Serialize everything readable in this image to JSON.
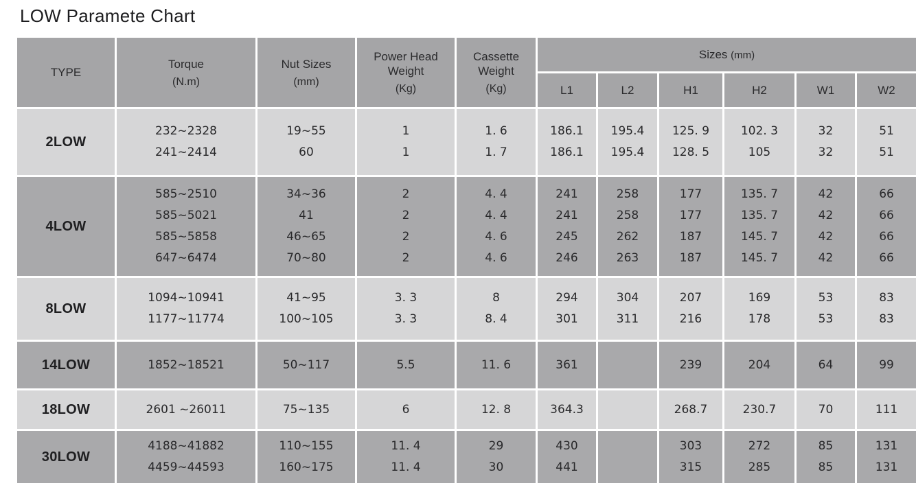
{
  "page": {
    "title": "LOW Paramete Chart"
  },
  "colors": {
    "header_bg": "#a5a5a7",
    "row_light_bg": "#d6d6d7",
    "row_dark_bg": "#a9a9ab",
    "grid": "#ffffff",
    "text": "#29292b"
  },
  "chart_data": {
    "type": "table",
    "title": "LOW Paramete Chart",
    "header": {
      "main_columns": [
        {
          "id": "type",
          "label": "TYPE",
          "sub": ""
        },
        {
          "id": "torque",
          "label": "Torque",
          "sub": "(N.m)"
        },
        {
          "id": "nut-sizes",
          "label": "Nut Sizes",
          "sub": "(mm)"
        },
        {
          "id": "power-head-weight",
          "label": "Power Head Weight",
          "sub": "(Kg)"
        },
        {
          "id": "cassette-weight",
          "label": "Cassette Weight",
          "sub": "(Kg)"
        }
      ],
      "sizes_group": {
        "label": "Sizes",
        "unit": "(mm)"
      },
      "size_columns": [
        "L1",
        "L2",
        "H1",
        "H2",
        "W1",
        "W2"
      ]
    },
    "rows": [
      {
        "type": "2LOW",
        "cells": {
          "torque": [
            "232~2328",
            "241~2414"
          ],
          "nut_sizes": [
            "19~55",
            "60"
          ],
          "power_head_weight": [
            "1",
            "1"
          ],
          "cassette_weight": [
            "1. 6",
            "1. 7"
          ],
          "L1": [
            "186.1",
            "186.1"
          ],
          "L2": [
            "195.4",
            "195.4"
          ],
          "H1": [
            "125. 9",
            "128. 5"
          ],
          "H2": [
            "102. 3",
            "105"
          ],
          "W1": [
            "32",
            "32"
          ],
          "W2": [
            "51",
            "51"
          ]
        }
      },
      {
        "type": "4LOW",
        "cells": {
          "torque": [
            "585~2510",
            "585~5021",
            "585~5858",
            "647~6474"
          ],
          "nut_sizes": [
            "34~36",
            "41",
            "46~65",
            "70~80"
          ],
          "power_head_weight": [
            "2",
            "2",
            "2",
            "2"
          ],
          "cassette_weight": [
            "4. 4",
            "4. 4",
            "4. 6",
            "4. 6"
          ],
          "L1": [
            "241",
            "241",
            "245",
            "246"
          ],
          "L2": [
            "258",
            "258",
            "262",
            "263"
          ],
          "H1": [
            "177",
            "177",
            "187",
            "187"
          ],
          "H2": [
            "135. 7",
            "135. 7",
            "145. 7",
            "145. 7"
          ],
          "W1": [
            "42",
            "42",
            "42",
            "42"
          ],
          "W2": [
            "66",
            "66",
            "66",
            "66"
          ]
        }
      },
      {
        "type": "8LOW",
        "cells": {
          "torque": [
            "1094~10941",
            "1177~11774"
          ],
          "nut_sizes": [
            "41~95",
            "100~105"
          ],
          "power_head_weight": [
            "3. 3",
            "3. 3"
          ],
          "cassette_weight": [
            "8",
            "8. 4"
          ],
          "L1": [
            "294",
            "301"
          ],
          "L2": [
            "304",
            "311"
          ],
          "H1": [
            "207",
            "216"
          ],
          "H2": [
            "169",
            "178"
          ],
          "W1": [
            "53",
            "53"
          ],
          "W2": [
            "83",
            "83"
          ]
        }
      },
      {
        "type": "14LOW",
        "cells": {
          "torque": [
            "1852~18521"
          ],
          "nut_sizes": [
            "50~117"
          ],
          "power_head_weight": [
            "5.5"
          ],
          "cassette_weight": [
            "11. 6"
          ],
          "L1": [
            "361"
          ],
          "L2": [],
          "H1": [
            "239"
          ],
          "H2": [
            "204"
          ],
          "W1": [
            "64"
          ],
          "W2": [
            "99"
          ]
        }
      },
      {
        "type": "18LOW",
        "cells": {
          "torque": [
            "2601 ~26011"
          ],
          "nut_sizes": [
            "75~135"
          ],
          "power_head_weight": [
            "6"
          ],
          "cassette_weight": [
            "12. 8"
          ],
          "L1": [
            "364.3"
          ],
          "L2": [],
          "H1": [
            "268.7"
          ],
          "H2": [
            "230.7"
          ],
          "W1": [
            "70"
          ],
          "W2": [
            "111"
          ]
        }
      },
      {
        "type": "30LOW",
        "cells": {
          "torque": [
            "4188~41882",
            "4459~44593"
          ],
          "nut_sizes": [
            "110~155",
            "160~175"
          ],
          "power_head_weight": [
            "11. 4",
            "11. 4"
          ],
          "cassette_weight": [
            "29",
            "30"
          ],
          "L1": [
            "430",
            "441"
          ],
          "L2": [],
          "H1": [
            "303",
            "315"
          ],
          "H2": [
            "272",
            "285"
          ],
          "W1": [
            "85",
            "85"
          ],
          "W2": [
            "131",
            "131"
          ]
        }
      }
    ]
  }
}
